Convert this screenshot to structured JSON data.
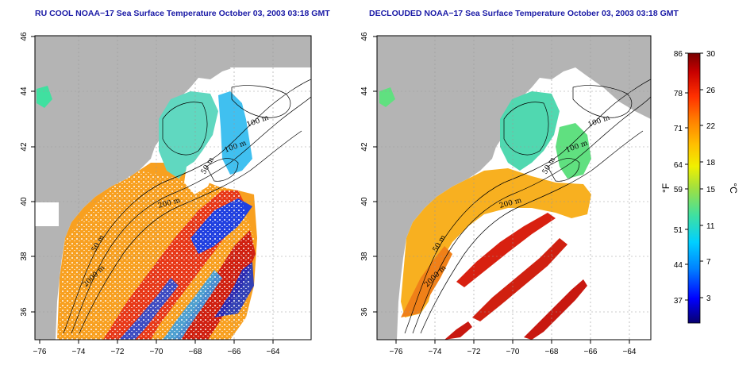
{
  "titles": {
    "left": "RU COOL NOAA−17 Sea Surface Temperature October 03, 2003 03:18 GMT",
    "right": "DECLOUDED NOAA−17 Sea Surface Temperature October 03, 2003 03:18 GMT"
  },
  "axes": {
    "x_ticks": [
      "−76",
      "−74",
      "−72",
      "−70",
      "−68",
      "−66",
      "−64"
    ],
    "y_ticks": [
      "36",
      "38",
      "40",
      "42",
      "44",
      "46"
    ]
  },
  "contour_labels": [
    "100 m",
    "100 m",
    "50 m",
    "200 m",
    "50 m",
    "2000 m"
  ],
  "colorbar": {
    "fahrenheit_ticks": [
      "86",
      "78",
      "71",
      "64",
      "59",
      "51",
      "44",
      "37"
    ],
    "celsius_ticks": [
      "30",
      "26",
      "22",
      "18",
      "15",
      "11",
      "7",
      "3"
    ],
    "fahrenheit_unit": "°F",
    "celsius_unit": "°C",
    "colors": [
      "#08006e",
      "#0000ff",
      "#0080ff",
      "#00d0ff",
      "#40e0a0",
      "#a0e040",
      "#f0f000",
      "#ffc000",
      "#ff8000",
      "#ff3000",
      "#c80000",
      "#780000"
    ]
  },
  "colors": {
    "land": "#b4b4b4",
    "sea_warm": "#f06020",
    "sea_orange": "#f8a020",
    "sea_cool": "#40d0e0",
    "sea_cold": "#2040e0",
    "cloud": "#ffffff"
  }
}
